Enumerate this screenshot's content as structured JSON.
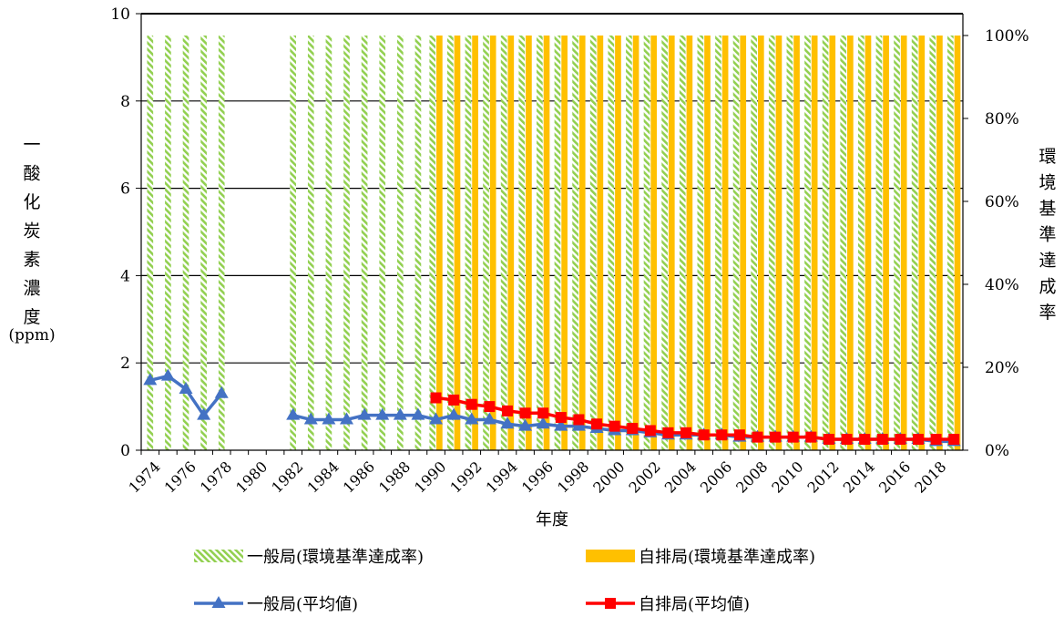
{
  "chart_data": {
    "type": "bar",
    "title": "",
    "xlabel": "年度",
    "ylabel_left_chars": [
      "一",
      "酸",
      "化",
      "炭",
      "素",
      "濃",
      "度"
    ],
    "ylabel_left_unit": "(ppm)",
    "ylabel_right_chars": [
      "環",
      "境",
      "基",
      "準",
      "達",
      "成",
      "率"
    ],
    "y_left_lim": [
      0,
      10
    ],
    "y_left_ticks": [
      "0",
      "2",
      "4",
      "6",
      "8",
      "10"
    ],
    "y_right_lim": [
      0,
      1.0
    ],
    "y_right_ticks": [
      "0%",
      "20%",
      "40%",
      "60%",
      "80%",
      "100%"
    ],
    "grid": true,
    "legend_position": "bottom",
    "years": [
      1974,
      1975,
      1976,
      1977,
      1978,
      1979,
      1980,
      1981,
      1982,
      1983,
      1984,
      1985,
      1986,
      1987,
      1988,
      1989,
      1990,
      1991,
      1992,
      1993,
      1994,
      1995,
      1996,
      1997,
      1998,
      1999,
      2000,
      2001,
      2002,
      2003,
      2004,
      2005,
      2006,
      2007,
      2008,
      2009,
      2010,
      2011,
      2012,
      2013,
      2014,
      2015,
      2016,
      2017,
      2018,
      2019
    ],
    "x_tick_labels": [
      "1974",
      "1976",
      "1978",
      "1980",
      "1982",
      "1984",
      "1986",
      "1988",
      "1990",
      "1992",
      "1994",
      "1996",
      "1998",
      "2000",
      "2002",
      "2004",
      "2006",
      "2008",
      "2010",
      "2012",
      "2014",
      "2016",
      "2018"
    ],
    "series": [
      {
        "name": "一般局(環境基準達成率)",
        "kind": "bar",
        "axis": "right",
        "color": "#92D050",
        "pattern": "diagonal-stripes",
        "values": [
          1,
          1,
          1,
          1,
          1,
          null,
          null,
          null,
          1,
          1,
          1,
          1,
          1,
          1,
          1,
          1,
          1,
          1,
          1,
          1,
          1,
          1,
          1,
          1,
          1,
          1,
          1,
          1,
          1,
          1,
          1,
          1,
          1,
          1,
          1,
          1,
          1,
          1,
          1,
          1,
          1,
          1,
          1,
          1,
          1,
          1
        ]
      },
      {
        "name": "自排局(環境基準達成率)",
        "kind": "bar",
        "axis": "right",
        "color": "#FFC000",
        "values": [
          null,
          null,
          null,
          null,
          null,
          null,
          null,
          null,
          null,
          null,
          null,
          null,
          null,
          null,
          null,
          null,
          1,
          1,
          1,
          1,
          1,
          1,
          1,
          1,
          1,
          1,
          1,
          1,
          1,
          1,
          1,
          1,
          1,
          1,
          1,
          1,
          1,
          1,
          1,
          1,
          1,
          1,
          1,
          1,
          1,
          1
        ]
      },
      {
        "name": "一般局(平均値)",
        "kind": "line",
        "axis": "left",
        "color": "#4472C4",
        "marker": "triangle",
        "values": [
          1.6,
          1.7,
          1.4,
          0.8,
          1.3,
          null,
          null,
          null,
          0.8,
          0.7,
          0.7,
          0.7,
          0.8,
          0.8,
          0.8,
          0.8,
          0.7,
          0.8,
          0.7,
          0.7,
          0.6,
          0.55,
          0.6,
          0.55,
          0.55,
          0.5,
          0.45,
          0.45,
          0.4,
          0.35,
          0.35,
          0.35,
          0.35,
          0.3,
          0.3,
          0.3,
          0.3,
          0.3,
          0.25,
          0.25,
          0.25,
          0.25,
          0.25,
          0.25,
          0.2,
          0.2
        ]
      },
      {
        "name": "自排局(平均値)",
        "kind": "line",
        "axis": "left",
        "color": "#FF0000",
        "marker": "square",
        "values": [
          null,
          null,
          null,
          null,
          null,
          null,
          null,
          null,
          null,
          null,
          null,
          null,
          null,
          null,
          null,
          null,
          1.2,
          1.15,
          1.05,
          1.0,
          0.9,
          0.85,
          0.85,
          0.75,
          0.7,
          0.6,
          0.55,
          0.5,
          0.45,
          0.4,
          0.4,
          0.35,
          0.35,
          0.35,
          0.3,
          0.3,
          0.3,
          0.3,
          0.25,
          0.25,
          0.25,
          0.25,
          0.25,
          0.25,
          0.25,
          0.25
        ]
      }
    ]
  }
}
